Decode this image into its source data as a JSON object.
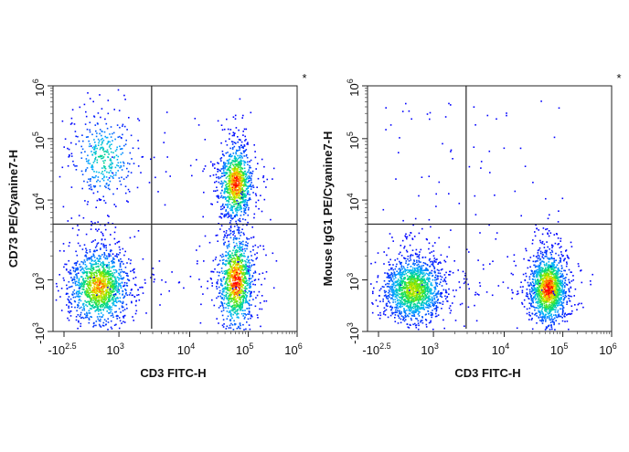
{
  "chart_data": [
    {
      "type": "scatter",
      "subtype": "flow-cytometry-density-dot-plot",
      "title": "",
      "asterisk": "*",
      "xlabel": "CD3 FITC-H",
      "ylabel": "CD73 PE/Cyanine7-H",
      "x_scale": "biexponential",
      "y_scale": "biexponential",
      "xlim": [
        -316,
        1000000
      ],
      "ylim": [
        -1000,
        1000000
      ],
      "x_ticks": [
        {
          "base": "-10",
          "exp": "2.5",
          "value": -316
        },
        {
          "base": "10",
          "exp": "3",
          "value": 1000
        },
        {
          "base": "10",
          "exp": "4",
          "value": 10000
        },
        {
          "base": "10",
          "exp": "5",
          "value": 100000
        },
        {
          "base": "10",
          "exp": "6",
          "value": 1000000
        }
      ],
      "y_ticks": [
        {
          "base": "-10",
          "exp": "3",
          "value": -1000
        },
        {
          "base": "10",
          "exp": "3",
          "value": 1000
        },
        {
          "base": "10",
          "exp": "4",
          "value": 10000
        },
        {
          "base": "10",
          "exp": "5",
          "value": 100000
        },
        {
          "base": "10",
          "exp": "6",
          "value": 1000000
        }
      ],
      "quadrant_gate": {
        "x": 2900,
        "y": 5000
      },
      "populations": [
        {
          "quadrant": "lower-left",
          "center_x": 150,
          "center_y": 500,
          "events": 1400
        },
        {
          "quadrant": "upper-left",
          "center_x": 250,
          "center_y": 50000,
          "events": 350
        },
        {
          "quadrant": "upper-right",
          "center_x": 60000,
          "center_y": 19000,
          "events": 1000
        },
        {
          "quadrant": "lower-right",
          "center_x": 60000,
          "center_y": 1000,
          "events": 1100
        }
      ],
      "colormap": "blue-cyan-green-yellow-red density"
    },
    {
      "type": "scatter",
      "subtype": "flow-cytometry-density-dot-plot",
      "title": "",
      "asterisk": "*",
      "xlabel": "CD3 FITC-H",
      "ylabel": "Mouse IgG1 PE/Cyanine7-H",
      "x_scale": "biexponential",
      "y_scale": "biexponential",
      "xlim": [
        -316,
        1000000
      ],
      "ylim": [
        -1000,
        1000000
      ],
      "x_ticks": [
        {
          "base": "-10",
          "exp": "2.5",
          "value": -316
        },
        {
          "base": "10",
          "exp": "3",
          "value": 1000
        },
        {
          "base": "10",
          "exp": "4",
          "value": 10000
        },
        {
          "base": "10",
          "exp": "5",
          "value": 100000
        },
        {
          "base": "10",
          "exp": "6",
          "value": 1000000
        }
      ],
      "y_ticks": [
        {
          "base": "-10",
          "exp": "3",
          "value": -1000
        },
        {
          "base": "10",
          "exp": "3",
          "value": 1000
        },
        {
          "base": "10",
          "exp": "4",
          "value": 10000
        },
        {
          "base": "10",
          "exp": "5",
          "value": 100000
        },
        {
          "base": "10",
          "exp": "6",
          "value": 1000000
        }
      ],
      "quadrant_gate": {
        "x": 2900,
        "y": 5000
      },
      "populations": [
        {
          "quadrant": "lower-left",
          "center_x": 150,
          "center_y": 350,
          "events": 1500
        },
        {
          "quadrant": "lower-right",
          "center_x": 55000,
          "center_y": 400,
          "events": 1500
        }
      ],
      "colormap": "blue-cyan-green-yellow-red density"
    }
  ]
}
